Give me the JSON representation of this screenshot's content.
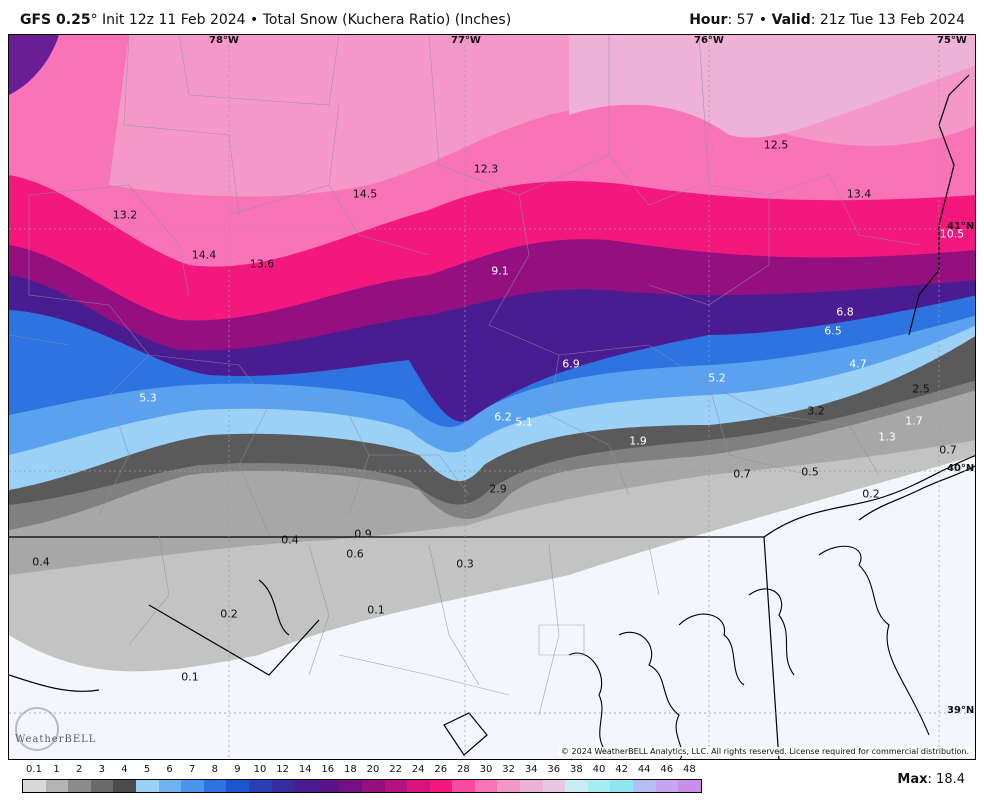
{
  "header": {
    "model": "GFS 0.25",
    "degree": "°",
    "init": " Init 12z 11 Feb 2024 • Total Snow (Kuchera Ratio) (Inches)",
    "hour_label": "Hour",
    "hour_value": ": 57 • ",
    "valid_label": "Valid",
    "valid_value": ": 21z Tue 13 Feb 2024"
  },
  "axis_labels": {
    "lon": [
      "78°W",
      "77°W",
      "76°W",
      "75°W"
    ],
    "lat": [
      "41°N",
      "40°N",
      "39°N"
    ]
  },
  "snow_labels": [
    {
      "v": "13.2"
    },
    {
      "v": "14.5"
    },
    {
      "v": "12.3"
    },
    {
      "v": "12.5"
    },
    {
      "v": "13.4"
    },
    {
      "v": "14.4"
    },
    {
      "v": "13.6"
    },
    {
      "v": "9.1"
    },
    {
      "v": "10.5"
    },
    {
      "v": "6.8"
    },
    {
      "v": "6.5"
    },
    {
      "v": "6.9"
    },
    {
      "v": "5.3"
    },
    {
      "v": "5.2"
    },
    {
      "v": "4.7"
    },
    {
      "v": "2.5"
    },
    {
      "v": "3.2"
    },
    {
      "v": "6.2"
    },
    {
      "v": "5.1"
    },
    {
      "v": "1.9"
    },
    {
      "v": "1.7"
    },
    {
      "v": "1.3"
    },
    {
      "v": "0.7"
    },
    {
      "v": "0.7"
    },
    {
      "v": "0.5"
    },
    {
      "v": "2.9"
    },
    {
      "v": "0.2"
    },
    {
      "v": "0.9"
    },
    {
      "v": "0.4"
    },
    {
      "v": "0.6"
    },
    {
      "v": "0.4"
    },
    {
      "v": "0.3"
    },
    {
      "v": "0.2"
    },
    {
      "v": "0.1"
    },
    {
      "v": "0.1"
    }
  ],
  "copyright": "© 2024 WeatherBELL Analytics, LLC. All rights reserved. License required for commercial distribution.",
  "logo_text": "WeatherBELL",
  "scale": {
    "ticks": [
      "0.1",
      "1",
      "2",
      "3",
      "4",
      "5",
      "6",
      "7",
      "8",
      "9",
      "10",
      "12",
      "14",
      "16",
      "18",
      "20",
      "22",
      "24",
      "26",
      "28",
      "30",
      "32",
      "34",
      "36",
      "38",
      "40",
      "42",
      "44",
      "46",
      "48"
    ],
    "colors": [
      "#d9d9d9",
      "#b4b4b4",
      "#8c8c8c",
      "#6a6a6a",
      "#4c4c4c",
      "#9bd0f7",
      "#6eb2f2",
      "#4a95ec",
      "#2e74e0",
      "#1e55cc",
      "#2a3fb4",
      "#3a2aa0",
      "#4a1c92",
      "#5c1288",
      "#760e84",
      "#941080",
      "#b4127e",
      "#d8147c",
      "#f2187e",
      "#f84a9e",
      "#f874b6",
      "#f498c8",
      "#eeb2d6",
      "#e6c6e0",
      "#c8eef4",
      "#a6eef2",
      "#8ee6ee",
      "#b4bef0",
      "#c6a6ee",
      "#c890ec"
    ],
    "max_label": "Max",
    "max_value": ": 18.4"
  }
}
